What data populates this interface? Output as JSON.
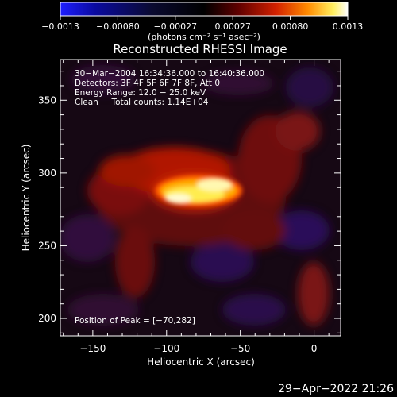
{
  "chart_data": {
    "type": "heatmap",
    "title": "Reconstructed RHESSI Image",
    "xlabel": "Heliocentric X (arcsec)",
    "ylabel": "Heliocentric Y (arcsec)",
    "xlim": [
      -172,
      18
    ],
    "ylim": [
      188,
      378
    ],
    "x_ticks": [
      {
        "value": -150,
        "label": "−150"
      },
      {
        "value": -100,
        "label": "−100"
      },
      {
        "value": -50,
        "label": "−50"
      },
      {
        "value": 0,
        "label": "0"
      }
    ],
    "y_ticks": [
      {
        "value": 200,
        "label": "200"
      },
      {
        "value": 250,
        "label": "250"
      },
      {
        "value": 300,
        "label": "300"
      },
      {
        "value": 350,
        "label": "350"
      }
    ],
    "colorbar": {
      "range": [
        -0.0013,
        0.0013
      ],
      "tick_labels": [
        "−0.0013",
        "−0.00080",
        "−0.00027",
        "0.00027",
        "0.00080",
        "0.0013"
      ],
      "unit_label": "(photons cm⁻² s⁻¹ asec⁻²)"
    },
    "info_lines": [
      "30−Mar−2004 16:34:36.000 to 16:40:36.000",
      "Detectors: 3F 4F 5F 6F 7F 8F, Att 0",
      "Energy Range: 12.0 − 25.0 keV",
      "Clean     Total counts: 1.14E+04"
    ],
    "peak_text": "Position of Peak = [−70,282]",
    "peak": [
      -70,
      282
    ],
    "grid": false,
    "color_table": "blue-black-red-yellow-white"
  },
  "footer": {
    "timestamp": "29−Apr−2022 21:26"
  }
}
